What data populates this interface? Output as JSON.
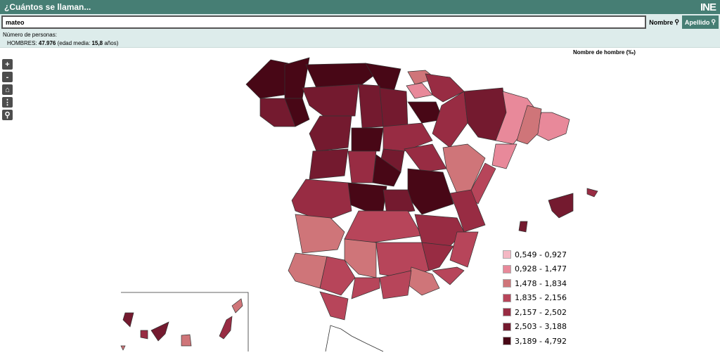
{
  "header": {
    "title": "¿Cuántos se llaman...",
    "logo": "INE"
  },
  "search": {
    "value": "mateo",
    "nombre_label": "Nombre",
    "apellido_label": "Apellido"
  },
  "info": {
    "label": "Número de personas:",
    "gender": "HOMBRES:",
    "count": "47.976",
    "age_prefix": "(edad media:",
    "age": "15,8",
    "age_suffix": "años)"
  },
  "map": {
    "title": "Nombre de hombre (‰)",
    "controls": [
      "zoom-in",
      "zoom-out",
      "home",
      "more",
      "search"
    ],
    "control_labels": [
      "+",
      "-",
      "⌂",
      "⋮",
      "⚲"
    ],
    "legend": [
      {
        "label": "0,549 - 0,927",
        "color": "#f4b8c4"
      },
      {
        "label": "0,928 - 1,477",
        "color": "#e8899a"
      },
      {
        "label": "1,478 - 1,834",
        "color": "#cf7579"
      },
      {
        "label": "1,835 - 2,156",
        "color": "#b7455a"
      },
      {
        "label": "2,157 - 2,502",
        "color": "#982c43"
      },
      {
        "label": "2,503 - 3,188",
        "color": "#741a2f"
      },
      {
        "label": "3,189 - 4,792",
        "color": "#480716"
      }
    ]
  }
}
